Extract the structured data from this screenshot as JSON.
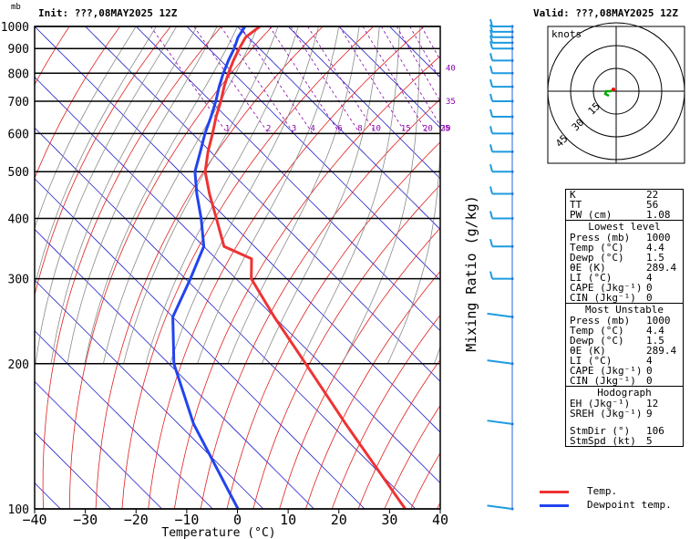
{
  "header": {
    "init": "Init: ???,08MAY2025 12Z",
    "valid": "Valid: ???,08MAY2025 12Z",
    "mb": "mb"
  },
  "colors": {
    "temp": "#ee3333",
    "dewpoint": "#2244ee",
    "isotherm": "#1c1cc8",
    "dry_adiabat": "#e02020",
    "moist_adiabat": "#8a8a8a",
    "mixing_ratio": "#8800aa",
    "hodo_trace": "#00aa00",
    "hodo_marker": "#ff0000"
  },
  "chart_data": {
    "type": "line",
    "xlabel": "Temperature (°C)",
    "ylabel_right": "Mixing Ratio (g/kg)",
    "xlim": [
      -40,
      40
    ],
    "ylim": [
      1000,
      100
    ],
    "x_ticks": [
      "−40",
      "−30",
      "−20",
      "−10",
      "0",
      "10",
      "20",
      "30",
      "40"
    ],
    "pressure_ticks": [
      "100",
      "200",
      "300",
      "400",
      "500",
      "600",
      "700",
      "800",
      "900",
      "1000"
    ],
    "mixing_ratio_labels": [
      "1",
      "2",
      "3",
      "4",
      "6",
      "8",
      "10",
      "15",
      "20",
      "25",
      "30"
    ],
    "mixing_ratio_axis_labels": [
      "35",
      "40"
    ],
    "series": [
      {
        "name": "Temp.",
        "points": [
          [
            1000,
            4.4
          ],
          [
            950,
            -0.5
          ],
          [
            900,
            -4
          ],
          [
            850,
            -7.5
          ],
          [
            800,
            -11
          ],
          [
            750,
            -14.5
          ],
          [
            700,
            -18
          ],
          [
            650,
            -22
          ],
          [
            600,
            -26
          ],
          [
            550,
            -30.5
          ],
          [
            500,
            -35
          ],
          [
            450,
            -38.5
          ],
          [
            400,
            -42
          ],
          [
            350,
            -46
          ],
          [
            330,
            -43
          ],
          [
            300,
            -47
          ],
          [
            250,
            -50
          ],
          [
            200,
            -53
          ],
          [
            150,
            -57
          ],
          [
            100,
            -62
          ]
        ]
      },
      {
        "name": "Dewpoint temp.",
        "points": [
          [
            1000,
            1.5
          ],
          [
            950,
            -2
          ],
          [
            900,
            -5
          ],
          [
            850,
            -8.5
          ],
          [
            800,
            -12
          ],
          [
            750,
            -15.5
          ],
          [
            700,
            -19
          ],
          [
            650,
            -23
          ],
          [
            600,
            -27.5
          ],
          [
            550,
            -32
          ],
          [
            500,
            -37
          ],
          [
            450,
            -41
          ],
          [
            400,
            -45
          ],
          [
            350,
            -50
          ],
          [
            300,
            -59
          ],
          [
            250,
            -70
          ],
          [
            200,
            -79
          ],
          [
            150,
            -87
          ],
          [
            100,
            -95
          ]
        ]
      }
    ],
    "wind_pressures": [
      100,
      150,
      200,
      250,
      300,
      350,
      400,
      450,
      500,
      550,
      600,
      650,
      700,
      750,
      800,
      850,
      900,
      925,
      950,
      975,
      1000
    ]
  },
  "hodograph": {
    "title": "knots",
    "ring_labels": [
      "15",
      "30",
      "45"
    ]
  },
  "info": {
    "general": [
      {
        "k": "K",
        "v": "22"
      },
      {
        "k": "TT",
        "v": "56"
      },
      {
        "k": "PW (cm)",
        "v": "1.08"
      }
    ],
    "lowest_level_title": "Lowest level",
    "lowest_level": [
      {
        "k": "Press (mb)",
        "v": "1000"
      },
      {
        "k": "Temp (°C)",
        "v": "4.4"
      },
      {
        "k": "Dewp (°C)",
        "v": "1.5"
      },
      {
        "k": "θE (K)",
        "v": "289.4"
      },
      {
        "k": "LI (°C)",
        "v": "4"
      },
      {
        "k": "CAPE (Jkg⁻¹)",
        "v": "0"
      },
      {
        "k": "CIN (Jkg⁻¹)",
        "v": "0"
      }
    ],
    "most_unstable_title": "Most Unstable",
    "most_unstable": [
      {
        "k": "Press (mb)",
        "v": "1000"
      },
      {
        "k": "Temp (°C)",
        "v": "4.4"
      },
      {
        "k": "Dewp (°C)",
        "v": "1.5"
      },
      {
        "k": "θE (K)",
        "v": "289.4"
      },
      {
        "k": "LI (°C)",
        "v": "4"
      },
      {
        "k": "CAPE (Jkg⁻¹)",
        "v": "0"
      },
      {
        "k": "CIN (Jkg⁻¹)",
        "v": "0"
      }
    ],
    "hodograph_title": "Hodograph",
    "hodograph_rows": [
      {
        "k": "EH (Jkg⁻¹)",
        "v": "12"
      },
      {
        "k": "SREH (Jkg⁻¹)",
        "v": "9"
      }
    ],
    "storm_rows": [
      {
        "k": "StmDir (°)",
        "v": "106"
      },
      {
        "k": "StmSpd (kt)",
        "v": "5"
      }
    ]
  },
  "legend": {
    "temp_label": "Temp.",
    "dewpoint_label": "Dewpoint temp."
  }
}
